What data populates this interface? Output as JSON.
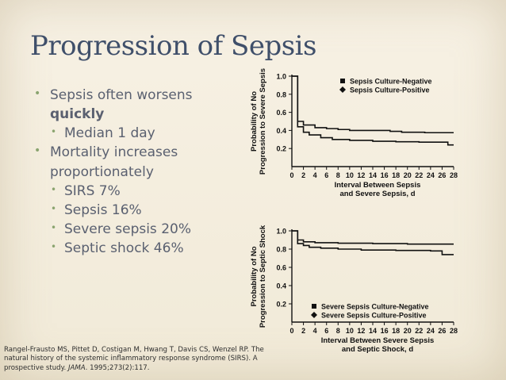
{
  "slide": {
    "title": "Progression of Sepsis",
    "bullets": [
      {
        "level": 1,
        "text": "Sepsis often worsens",
        "bold_text": "quickly"
      },
      {
        "level": 2,
        "text": "Median 1 day"
      },
      {
        "level": 1,
        "text": "Mortality increases proportionately"
      },
      {
        "level": 2,
        "text": "SIRS 7%"
      },
      {
        "level": 2,
        "text": "Sepsis 16%"
      },
      {
        "level": 2,
        "text": "Severe sepsis 20%"
      },
      {
        "level": 2,
        "text": "Septic shock 46%"
      }
    ],
    "citation": {
      "main": "Rangel-Frausto MS, Pittet D, Costigan M, Hwang T, Davis CS, Wenzel RP. The natural history of the systemic inflammatory response syndrome (SIRS). A prospective study.",
      "journal": "JAMA",
      "year_ref": ". 1995;273(2):117."
    },
    "bullet_glyph": "•"
  },
  "chart_data": [
    {
      "type": "line",
      "step": true,
      "ylabel": "Probability of No Progression to Severe Sepsis",
      "xlabel": "Interval Between Sepsis and Severe Sepsis, d",
      "xlabel_lines": [
        "Interval Between Sepsis",
        "and Severe Sepsis, d"
      ],
      "ylabel_lines": [
        "Probability of No",
        "Progression to Severe Sepsis"
      ],
      "xlim": [
        0,
        28
      ],
      "ylim": [
        0,
        1.0
      ],
      "xticks": [
        0,
        2,
        4,
        6,
        8,
        10,
        12,
        14,
        16,
        18,
        20,
        22,
        24,
        26,
        28
      ],
      "yticks": [
        0.2,
        0.4,
        0.6,
        0.8,
        1.0
      ],
      "ytick_labels": [
        "0.2",
        "0.4",
        "0.6",
        "0.8",
        "1.0"
      ],
      "legend": "top-right",
      "series": [
        {
          "name": "Sepsis Culture-Negative",
          "marker": "square",
          "points": [
            [
              0,
              1.0
            ],
            [
              1,
              1.0
            ],
            [
              1,
              0.44
            ],
            [
              2,
              0.38
            ],
            [
              3,
              0.35
            ],
            [
              5,
              0.32
            ],
            [
              7,
              0.3
            ],
            [
              10,
              0.29
            ],
            [
              14,
              0.28
            ],
            [
              18,
              0.275
            ],
            [
              22,
              0.27
            ],
            [
              27,
              0.26
            ],
            [
              27,
              0.24
            ],
            [
              28,
              0.24
            ]
          ]
        },
        {
          "name": "Sepsis Culture-Positive",
          "marker": "diamond",
          "points": [
            [
              0,
              1.0
            ],
            [
              1,
              1.0
            ],
            [
              1,
              0.5
            ],
            [
              2,
              0.46
            ],
            [
              4,
              0.43
            ],
            [
              6,
              0.42
            ],
            [
              8,
              0.41
            ],
            [
              10,
              0.4
            ],
            [
              13,
              0.4
            ],
            [
              17,
              0.39
            ],
            [
              19,
              0.38
            ],
            [
              23,
              0.375
            ],
            [
              28,
              0.375
            ]
          ]
        }
      ]
    },
    {
      "type": "line",
      "step": true,
      "ylabel": "Probability of No Progression to Septic Shock",
      "xlabel": "Interval Between Severe Sepsis and Septic Shock, d",
      "xlabel_lines": [
        "Interval Between Severe Sepsis",
        "and Septic Shock, d"
      ],
      "ylabel_lines": [
        "Probability of No",
        "Progression to Septic Shock"
      ],
      "xlim": [
        0,
        28
      ],
      "ylim": [
        0,
        1.0
      ],
      "xticks": [
        0,
        2,
        4,
        6,
        8,
        10,
        12,
        14,
        16,
        18,
        20,
        22,
        24,
        26,
        28
      ],
      "yticks": [
        0.2,
        0.4,
        0.6,
        0.8,
        1.0
      ],
      "ytick_labels": [
        "0.2",
        "0.4",
        "0.6",
        "0.8",
        "1.0"
      ],
      "legend": "bottom-right",
      "series": [
        {
          "name": "Severe Sepsis Culture-Negative",
          "marker": "square",
          "points": [
            [
              0,
              1.0
            ],
            [
              1,
              1.0
            ],
            [
              1,
              0.86
            ],
            [
              2,
              0.84
            ],
            [
              3,
              0.82
            ],
            [
              5,
              0.81
            ],
            [
              8,
              0.8
            ],
            [
              12,
              0.79
            ],
            [
              18,
              0.785
            ],
            [
              24,
              0.78
            ],
            [
              26,
              0.77
            ],
            [
              26,
              0.74
            ],
            [
              28,
              0.74
            ]
          ]
        },
        {
          "name": "Severe Sepsis Culture-Positive",
          "marker": "diamond",
          "points": [
            [
              0,
              1.0
            ],
            [
              1,
              1.0
            ],
            [
              1,
              0.9
            ],
            [
              2,
              0.88
            ],
            [
              4,
              0.87
            ],
            [
              8,
              0.865
            ],
            [
              14,
              0.86
            ],
            [
              20,
              0.855
            ],
            [
              28,
              0.855
            ]
          ]
        }
      ]
    }
  ]
}
